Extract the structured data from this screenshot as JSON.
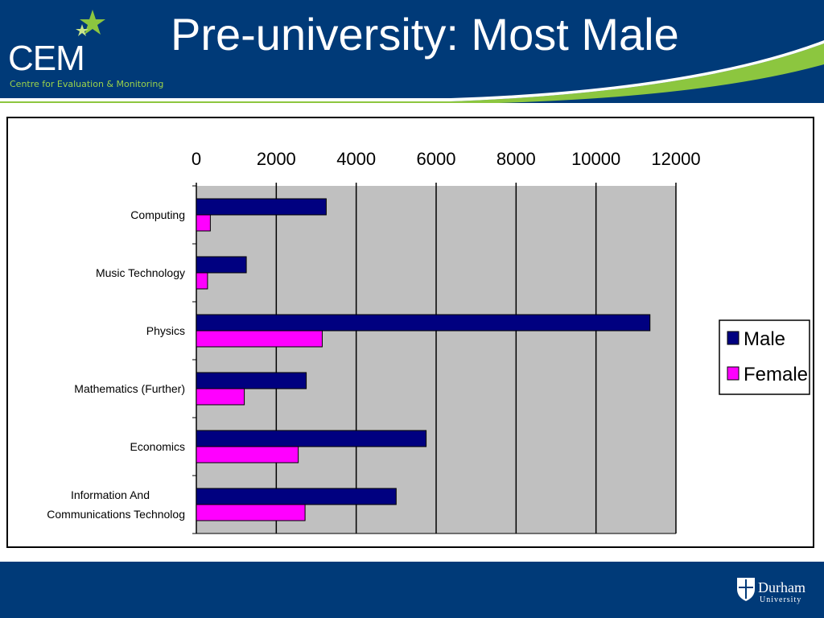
{
  "header": {
    "logo_text": "CEM",
    "logo_subtitle": "Centre for Evaluation & Monitoring",
    "title": "Pre-university: Most Male"
  },
  "footer": {
    "university_name": "Durham",
    "university_sub": "University"
  },
  "colors": {
    "header_blue": "#003a78",
    "accent_green": "#8cc63f",
    "male": "#000080",
    "female": "#ff00ff",
    "plot_bg": "#c0c0c0"
  },
  "chart_data": {
    "type": "bar",
    "orientation": "horizontal",
    "title": "",
    "xlabel": "",
    "ylabel": "",
    "xlim": [
      0,
      12000
    ],
    "x_ticks": [
      "0",
      "2000",
      "4000",
      "6000",
      "8000",
      "10000",
      "12000"
    ],
    "x_tick_position": "top",
    "grid": true,
    "legend_position": "right",
    "categories": [
      "Computing",
      "Music Technology",
      "Physics",
      "Mathematics (Further)",
      "Economics",
      "Information And Communications Technolog"
    ],
    "series": [
      {
        "name": "Male",
        "color": "#000080",
        "values": [
          3250,
          1250,
          11350,
          2750,
          5750,
          5000
        ]
      },
      {
        "name": "Female",
        "color": "#ff00ff",
        "values": [
          350,
          280,
          3150,
          1200,
          2550,
          2720
        ]
      }
    ]
  }
}
